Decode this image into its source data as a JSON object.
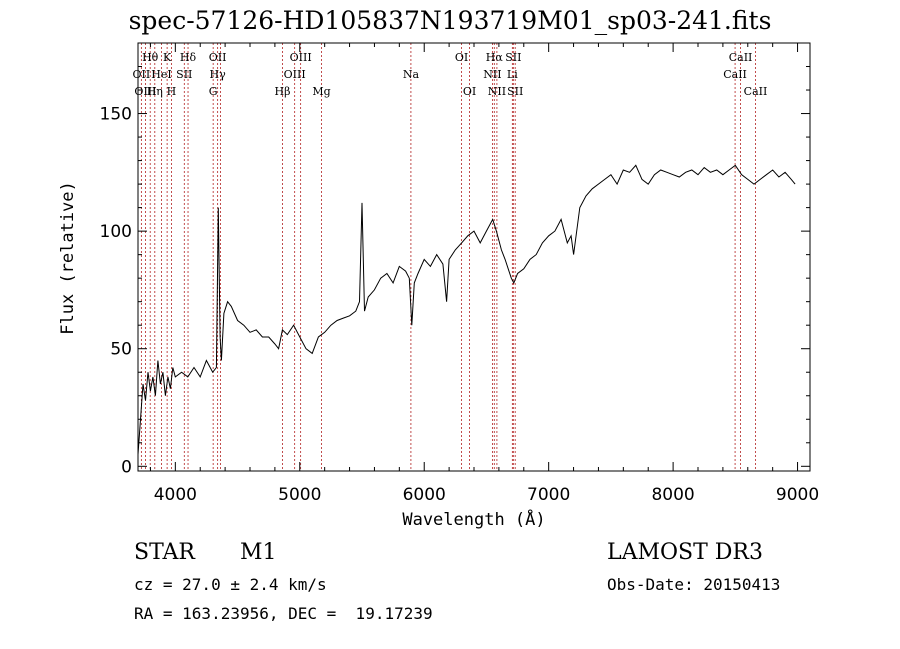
{
  "chart_data": {
    "type": "line",
    "title": "spec-57126-HD105837N193719M01_sp03-241.fits",
    "xlabel": "Wavelength (Å)",
    "ylabel": "Flux (relative)",
    "xlim": [
      3700,
      9100
    ],
    "ylim": [
      -2,
      180
    ],
    "x_ticks": [
      4000,
      5000,
      6000,
      7000,
      8000,
      9000
    ],
    "y_ticks": [
      0,
      50,
      100,
      150
    ],
    "grid": false,
    "series": [
      {
        "x": [
          3700,
          3720,
          3740,
          3760,
          3780,
          3800,
          3820,
          3840,
          3860,
          3880,
          3900,
          3920,
          3940,
          3960,
          3980,
          4000,
          4050,
          4100,
          4150,
          4200,
          4250,
          4300,
          4330,
          4345,
          4360,
          4370,
          4390,
          4420,
          4450,
          4500,
          4550,
          4600,
          4650,
          4700,
          4750,
          4800,
          4830,
          4860,
          4900,
          4950,
          5000,
          5050,
          5100,
          5150,
          5200,
          5250,
          5300,
          5350,
          5400,
          5450,
          5480,
          5500,
          5520,
          5550,
          5600,
          5650,
          5700,
          5750,
          5800,
          5850,
          5880,
          5900,
          5920,
          5950,
          6000,
          6050,
          6100,
          6150,
          6180,
          6200,
          6250,
          6300,
          6350,
          6400,
          6450,
          6500,
          6550,
          6580,
          6620,
          6650,
          6700,
          6720,
          6750,
          6800,
          6850,
          6900,
          6950,
          7000,
          7050,
          7100,
          7150,
          7180,
          7200,
          7250,
          7300,
          7350,
          7400,
          7450,
          7500,
          7550,
          7600,
          7650,
          7700,
          7750,
          7800,
          7850,
          7900,
          7950,
          8000,
          8050,
          8100,
          8150,
          8200,
          8250,
          8300,
          8350,
          8400,
          8450,
          8500,
          8550,
          8600,
          8650,
          8700,
          8750,
          8800,
          8850,
          8900,
          8950,
          8980
        ],
        "y": [
          5,
          20,
          35,
          28,
          40,
          32,
          38,
          30,
          45,
          35,
          40,
          30,
          38,
          33,
          42,
          38,
          40,
          38,
          42,
          38,
          45,
          40,
          42,
          110,
          55,
          45,
          65,
          70,
          68,
          62,
          60,
          57,
          58,
          55,
          55,
          52,
          50,
          58,
          56,
          60,
          55,
          50,
          48,
          55,
          57,
          60,
          62,
          63,
          64,
          66,
          70,
          112,
          66,
          72,
          75,
          80,
          82,
          78,
          85,
          83,
          80,
          60,
          78,
          82,
          88,
          85,
          90,
          86,
          70,
          88,
          92,
          95,
          98,
          100,
          95,
          100,
          105,
          100,
          92,
          88,
          80,
          78,
          82,
          84,
          88,
          90,
          95,
          98,
          100,
          105,
          95,
          98,
          90,
          110,
          115,
          118,
          120,
          122,
          124,
          120,
          126,
          125,
          128,
          122,
          120,
          124,
          126,
          125,
          124,
          123,
          125,
          126,
          124,
          127,
          125,
          126,
          124,
          126,
          128,
          124,
          122,
          120,
          122,
          124,
          126,
          123,
          125,
          122,
          120
        ]
      }
    ],
    "annotations": [
      {
        "label": "Hθ",
        "x": 3798,
        "row": 1
      },
      {
        "label": "OII",
        "x": 3727,
        "row": 2
      },
      {
        "label": "OIII",
        "x": 3760,
        "row": 3
      },
      {
        "label": "K",
        "x": 3934,
        "row": 1
      },
      {
        "label": "HeI",
        "x": 3889,
        "row": 2
      },
      {
        "label": "Hη",
        "x": 3835,
        "row": 3
      },
      {
        "label": "SII",
        "x": 4072,
        "row": 2
      },
      {
        "label": "H",
        "x": 3969,
        "row": 3
      },
      {
        "label": "Hδ",
        "x": 4102,
        "row": 1
      },
      {
        "label": "OII",
        "x": 4340,
        "row": 1
      },
      {
        "label": "Hγ",
        "x": 4340,
        "row": 2
      },
      {
        "label": "G",
        "x": 4304,
        "row": 3
      },
      {
        "label": "OIII",
        "x": 5007,
        "row": 1
      },
      {
        "label": "OIII",
        "x": 4959,
        "row": 2
      },
      {
        "label": "Hβ",
        "x": 4861,
        "row": 3
      },
      {
        "label": "Mg",
        "x": 5175,
        "row": 3
      },
      {
        "label": "Na",
        "x": 5893,
        "row": 2
      },
      {
        "label": "OI",
        "x": 6300,
        "row": 1
      },
      {
        "label": "OI",
        "x": 6364,
        "row": 3
      },
      {
        "label": "Hα",
        "x": 6563,
        "row": 1
      },
      {
        "label": "SII",
        "x": 6716,
        "row": 1
      },
      {
        "label": "NII",
        "x": 6548,
        "row": 2
      },
      {
        "label": "Li",
        "x": 6708,
        "row": 2
      },
      {
        "label": "NII",
        "x": 6584,
        "row": 3
      },
      {
        "label": "SII",
        "x": 6731,
        "row": 3
      },
      {
        "label": "CaII",
        "x": 8542,
        "row": 1
      },
      {
        "label": "CaII",
        "x": 8498,
        "row": 2
      },
      {
        "label": "CaII",
        "x": 8662,
        "row": 3
      }
    ],
    "line_marks": [
      3727,
      3760,
      3798,
      3835,
      3889,
      3934,
      3969,
      4072,
      4102,
      4304,
      4340,
      4363,
      4861,
      4959,
      5007,
      5175,
      5893,
      6300,
      6364,
      6548,
      6563,
      6584,
      6708,
      6716,
      6731,
      8498,
      8542,
      8662
    ]
  },
  "info": {
    "class_label": "STAR",
    "subclass": "M1",
    "survey": "LAMOST DR3",
    "cz": "cz = 27.0 ± 2.4 km/s",
    "obs_date": "Obs-Date: 20150413",
    "coords": "RA = 163.23956, DEC =  19.17239"
  },
  "colors": {
    "spectrum": "#000000",
    "line_marks": "#b22222"
  }
}
